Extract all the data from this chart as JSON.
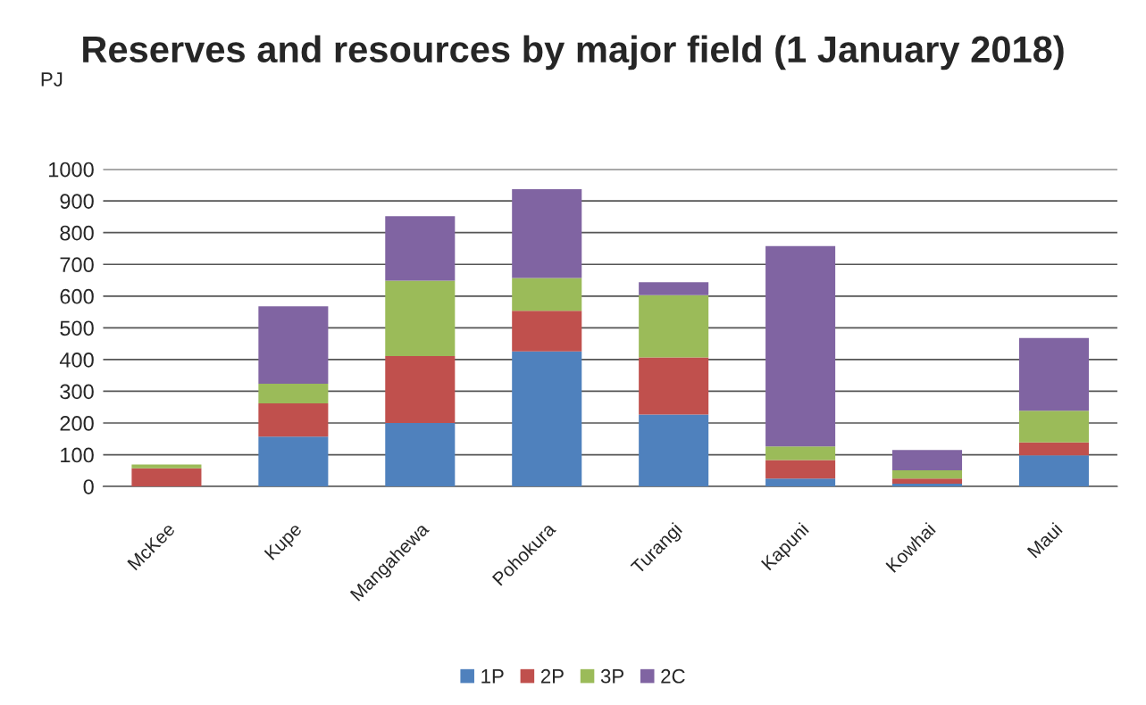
{
  "chart_data": {
    "type": "bar",
    "title": "Reserves and resources by major field (1 January 2018)",
    "ylabel": "PJ",
    "categories": [
      "McKee",
      "Kupe",
      "Mangahewa",
      "Pohokura",
      "Turangi",
      "Kapuni",
      "Kowhai",
      "Maui"
    ],
    "stacked": true,
    "series": [
      {
        "name": "1P",
        "color": "#4f81bd",
        "values": [
          0,
          157,
          200,
          426,
          227,
          25,
          9,
          98
        ]
      },
      {
        "name": "2P",
        "color": "#c0504d",
        "values": [
          57,
          105,
          211,
          128,
          180,
          58,
          16,
          41
        ]
      },
      {
        "name": "3P",
        "color": "#9bbb59",
        "values": [
          12,
          62,
          238,
          103,
          196,
          43,
          26,
          100
        ]
      },
      {
        "name": "2C",
        "color": "#8064a2",
        "values": [
          0,
          244,
          203,
          280,
          41,
          632,
          64,
          229
        ]
      }
    ],
    "ylim": [
      0,
      1000
    ],
    "yticks": [
      0,
      100,
      200,
      300,
      400,
      500,
      600,
      700,
      800,
      900,
      1000
    ],
    "grid": "y",
    "legend": "bottom"
  }
}
